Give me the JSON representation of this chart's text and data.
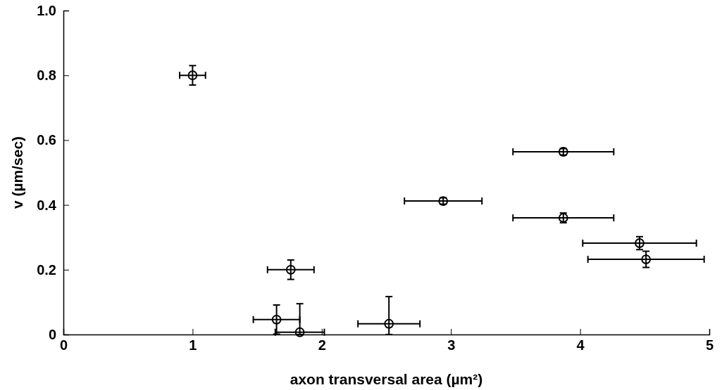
{
  "chart_data": {
    "type": "scatter",
    "xlabel": "axon transversal area (µm²)",
    "ylabel": "v (µm/sec)",
    "x": [
      1.0,
      1.76,
      1.65,
      1.83,
      2.52,
      2.94,
      3.87,
      3.87,
      4.46,
      4.51
    ],
    "values": [
      0.8,
      0.2,
      0.046,
      0.007,
      0.033,
      0.412,
      0.564,
      0.36,
      0.282,
      0.232
    ],
    "errors": [
      0.03,
      0.03,
      0.045,
      [
        0,
        0.095
      ],
      [
        0,
        0.117
      ],
      0.01,
      0.01,
      0.015,
      0.02,
      0.025
    ],
    "xerrors": [
      0.1,
      0.18,
      0.18,
      0.19,
      0.24,
      0.3,
      0.39,
      0.39,
      0.44,
      0.45
    ],
    "color": "#000000",
    "marker": "circle",
    "grid": false,
    "xlim": [
      0,
      5
    ],
    "xticks": [
      0,
      1,
      2,
      3,
      4,
      5
    ],
    "ylim": [
      0,
      1
    ],
    "yticks": [
      0,
      {
        "value": 0.2,
        "label": "0.2"
      },
      {
        "value": 0.4,
        "label": "0.4"
      },
      {
        "value": 0.6,
        "label": "0.6"
      },
      {
        "value": 0.8,
        "label": "0.8"
      },
      {
        "value": 1,
        "label": "1.0"
      }
    ]
  }
}
